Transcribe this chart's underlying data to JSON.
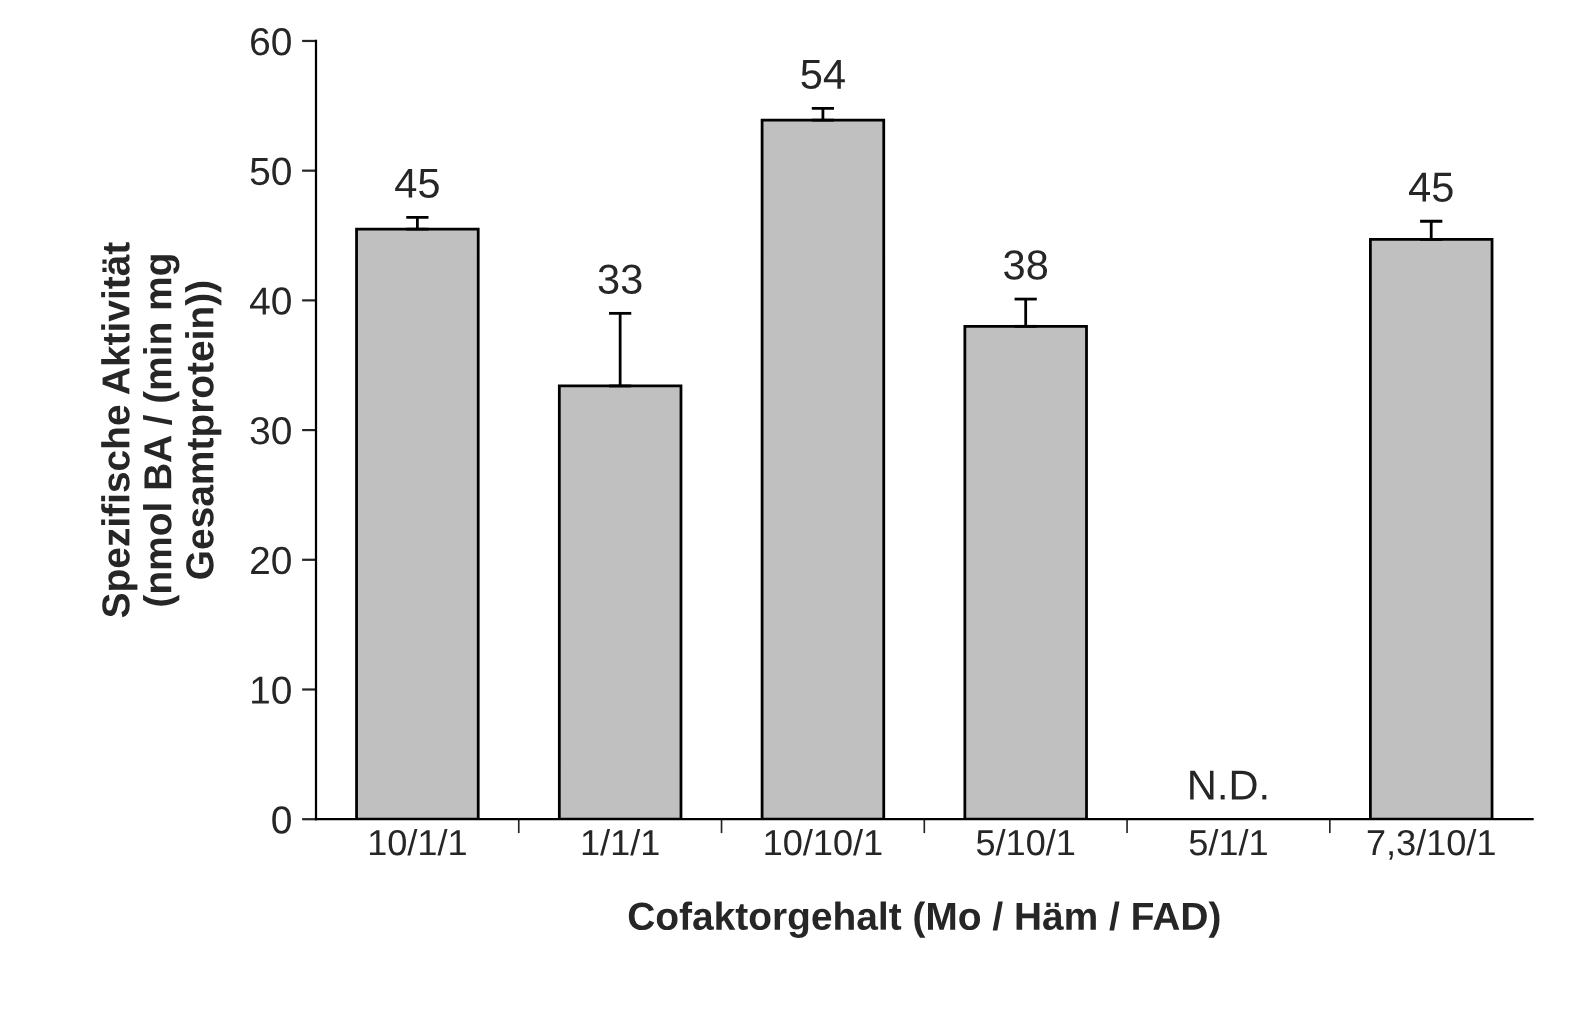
{
  "chart_data": {
    "type": "bar",
    "xlabel": "Cofaktorgehalt (Mo / Häm / FAD)",
    "ylabel": "Spezifische Aktivität\n(nmol BA / (min mg\nGesamtprotein))",
    "categories": [
      "10/1/1",
      "1/1/1",
      "10/10/1",
      "5/10/1",
      "5/1/1",
      "7,3/10/1"
    ],
    "values": [
      45.5,
      33.4,
      53.9,
      38.0,
      null,
      44.7
    ],
    "errors": [
      [
        45.5,
        46.4
      ],
      [
        33.4,
        39.0
      ],
      [
        53.9,
        54.8
      ],
      [
        38.0,
        40.1
      ],
      null,
      [
        44.7,
        46.1
      ]
    ],
    "value_labels": [
      "45",
      "33",
      "54",
      "38",
      "N.D.",
      "45"
    ],
    "color": "#c0c0c0",
    "ylim": [
      0,
      60
    ],
    "yticks": [
      0,
      10,
      20,
      30,
      40,
      50,
      60
    ],
    "grid": false,
    "legend": false
  }
}
